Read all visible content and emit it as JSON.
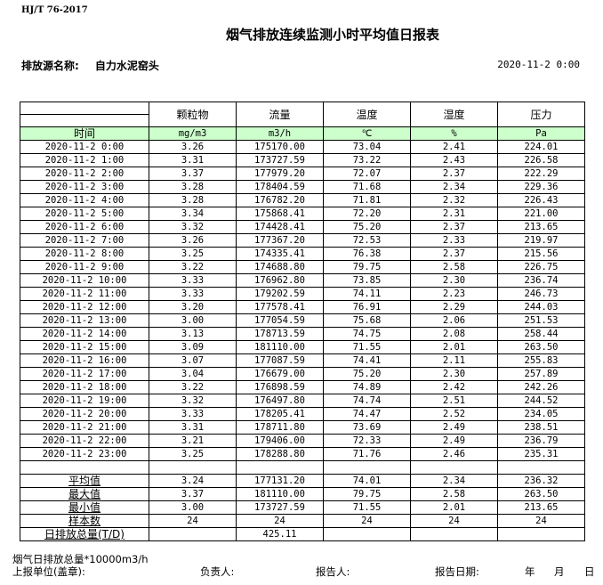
{
  "standard": "HJ/T  76-2017",
  "title": "烟气排放连续监测小时平均值日报表",
  "source_label": "排放源名称:",
  "source_name": "自力水泥窑头",
  "report_datetime": "2020-11-2 0:00",
  "table": {
    "columns": [
      "颗粒物",
      "流量",
      "温度",
      "湿度",
      "压力"
    ],
    "time_label": "时间",
    "units": [
      "mg/m3",
      "m3/h",
      "℃",
      "%",
      "Pa"
    ],
    "rows": [
      [
        "2020-11-2 0:00",
        "3.26",
        "175170.00",
        "73.04",
        "2.41",
        "224.01"
      ],
      [
        "2020-11-2 1:00",
        "3.31",
        "173727.59",
        "73.22",
        "2.43",
        "226.58"
      ],
      [
        "2020-11-2 2:00",
        "3.37",
        "177979.20",
        "72.07",
        "2.37",
        "222.29"
      ],
      [
        "2020-11-2 3:00",
        "3.28",
        "178404.59",
        "71.68",
        "2.34",
        "229.36"
      ],
      [
        "2020-11-2 4:00",
        "3.28",
        "176782.20",
        "71.81",
        "2.32",
        "226.43"
      ],
      [
        "2020-11-2 5:00",
        "3.34",
        "175868.41",
        "72.20",
        "2.31",
        "221.00"
      ],
      [
        "2020-11-2 6:00",
        "3.32",
        "174428.41",
        "75.20",
        "2.37",
        "213.65"
      ],
      [
        "2020-11-2 7:00",
        "3.26",
        "177367.20",
        "72.53",
        "2.33",
        "219.97"
      ],
      [
        "2020-11-2 8:00",
        "3.25",
        "174335.41",
        "76.38",
        "2.37",
        "215.56"
      ],
      [
        "2020-11-2 9:00",
        "3.22",
        "174688.80",
        "79.75",
        "2.58",
        "226.75"
      ],
      [
        "2020-11-2 10:00",
        "3.33",
        "176962.80",
        "73.85",
        "2.30",
        "236.74"
      ],
      [
        "2020-11-2 11:00",
        "3.33",
        "179202.59",
        "74.11",
        "2.23",
        "246.73"
      ],
      [
        "2020-11-2 12:00",
        "3.20",
        "177578.41",
        "76.91",
        "2.29",
        "244.03"
      ],
      [
        "2020-11-2 13:00",
        "3.00",
        "177054.59",
        "75.68",
        "2.06",
        "251.53"
      ],
      [
        "2020-11-2 14:00",
        "3.13",
        "178713.59",
        "74.75",
        "2.08",
        "258.44"
      ],
      [
        "2020-11-2 15:00",
        "3.09",
        "181110.00",
        "71.55",
        "2.01",
        "263.50"
      ],
      [
        "2020-11-2 16:00",
        "3.07",
        "177087.59",
        "74.41",
        "2.11",
        "255.83"
      ],
      [
        "2020-11-2 17:00",
        "3.04",
        "176679.00",
        "75.20",
        "2.30",
        "257.89"
      ],
      [
        "2020-11-2 18:00",
        "3.22",
        "176898.59",
        "74.89",
        "2.42",
        "242.26"
      ],
      [
        "2020-11-2 19:00",
        "3.32",
        "176497.80",
        "74.74",
        "2.51",
        "244.52"
      ],
      [
        "2020-11-2 20:00",
        "3.33",
        "178205.41",
        "74.47",
        "2.52",
        "234.05"
      ],
      [
        "2020-11-2 21:00",
        "3.31",
        "178711.80",
        "73.69",
        "2.49",
        "238.51"
      ],
      [
        "2020-11-2 22:00",
        "3.21",
        "179406.00",
        "72.33",
        "2.49",
        "236.79"
      ],
      [
        "2020-11-2 23:00",
        "3.25",
        "178288.80",
        "71.76",
        "2.46",
        "235.31"
      ]
    ],
    "stats": [
      [
        "平均值",
        "3.24",
        "177131.20",
        "74.01",
        "2.34",
        "236.32"
      ],
      [
        "最大值",
        "3.37",
        "181110.00",
        "79.75",
        "2.58",
        "263.50"
      ],
      [
        "最小值",
        "3.00",
        "173727.59",
        "71.55",
        "2.01",
        "213.65"
      ],
      [
        "样本数",
        "24",
        "24",
        "24",
        "24",
        "24"
      ],
      [
        "日排放总量(T/D)",
        "",
        "425.11",
        "",
        "",
        ""
      ]
    ]
  },
  "footer": {
    "note": "烟气日排放总量*10000m3/h",
    "unit_label": "上报单位(盖章):",
    "responsible_label": "负责人:",
    "reporter_label": "报告人:",
    "report_date_label": "报告日期:",
    "year": "年",
    "month": "月",
    "day": "日"
  }
}
